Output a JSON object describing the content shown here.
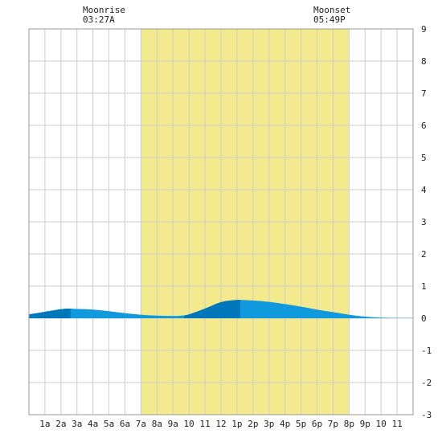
{
  "chart_data": {
    "type": "area",
    "title": "",
    "xlabel": "",
    "ylabel": "",
    "x_range": [
      0,
      24
    ],
    "ylim": [
      -3,
      9
    ],
    "y_ticks": [
      -3,
      -2,
      -1,
      0,
      1,
      2,
      3,
      4,
      5,
      6,
      7,
      8,
      9
    ],
    "x_tick_labels": [
      {
        "hour": 1,
        "label": "1a"
      },
      {
        "hour": 2,
        "label": "2a"
      },
      {
        "hour": 3,
        "label": "3a"
      },
      {
        "hour": 4,
        "label": "4a"
      },
      {
        "hour": 5,
        "label": "5a"
      },
      {
        "hour": 6,
        "label": "6a"
      },
      {
        "hour": 7,
        "label": "7a"
      },
      {
        "hour": 8,
        "label": "8a"
      },
      {
        "hour": 9,
        "label": "9a"
      },
      {
        "hour": 10,
        "label": "10"
      },
      {
        "hour": 11,
        "label": "11"
      },
      {
        "hour": 12,
        "label": "12"
      },
      {
        "hour": 13,
        "label": "1p"
      },
      {
        "hour": 14,
        "label": "2p"
      },
      {
        "hour": 15,
        "label": "3p"
      },
      {
        "hour": 16,
        "label": "4p"
      },
      {
        "hour": 17,
        "label": "5p"
      },
      {
        "hour": 18,
        "label": "6p"
      },
      {
        "hour": 19,
        "label": "7p"
      },
      {
        "hour": 20,
        "label": "8p"
      },
      {
        "hour": 21,
        "label": "9p"
      },
      {
        "hour": 22,
        "label": "10"
      },
      {
        "hour": 23,
        "label": "11"
      }
    ],
    "grid": true,
    "daylight": {
      "start_hour": 7,
      "end_hour": 20,
      "color": "#f2ea8c"
    },
    "moon_events": [
      {
        "hour": 3.45,
        "title": "Moonrise",
        "time": "03:27A"
      },
      {
        "hour": 17.82,
        "title": "Moonset",
        "time": "05:49P"
      }
    ],
    "tide_color_light": "#1199dd",
    "tide_color_dark": "#0077bb",
    "tide_series": {
      "x": [
        0,
        1,
        2,
        2.5,
        3,
        4,
        5,
        6,
        7,
        8,
        9,
        9.5,
        10,
        11,
        12,
        13,
        14,
        15,
        16,
        17,
        18,
        19,
        20,
        21,
        22,
        23,
        24
      ],
      "y": [
        0.12,
        0.2,
        0.28,
        0.3,
        0.29,
        0.27,
        0.22,
        0.16,
        0.11,
        0.08,
        0.07,
        0.08,
        0.12,
        0.3,
        0.5,
        0.57,
        0.55,
        0.51,
        0.44,
        0.36,
        0.27,
        0.19,
        0.11,
        0.05,
        0.02,
        0.01,
        0.01
      ]
    },
    "highlight_segments": [
      {
        "from_hour": 0,
        "to_hour": 2.6
      },
      {
        "from_hour": 9.7,
        "to_hour": 13.2
      }
    ]
  }
}
